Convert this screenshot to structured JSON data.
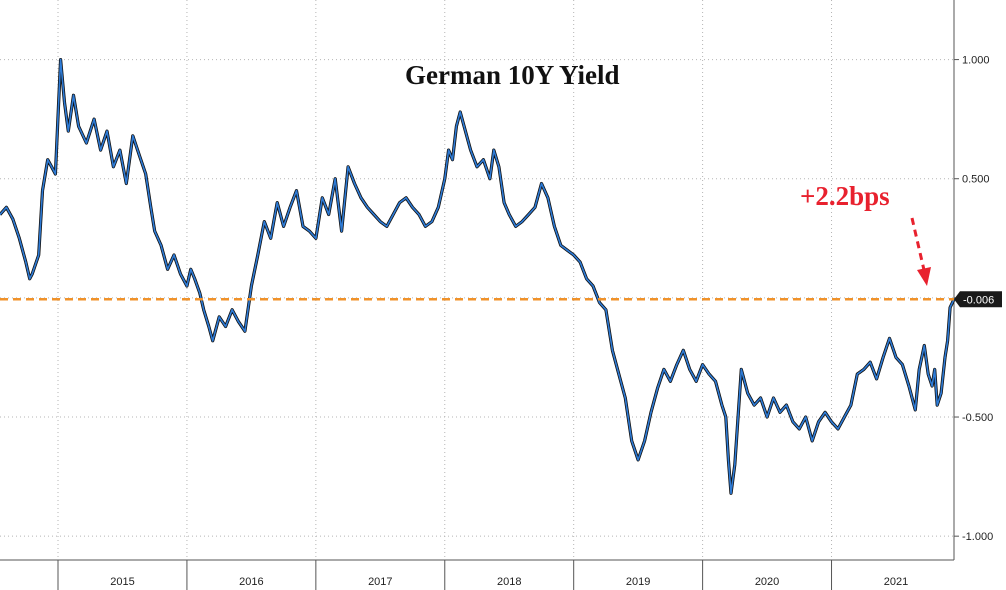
{
  "chart_data": {
    "type": "line",
    "title": "German 10Y Yield",
    "xlabel": "",
    "ylabel": "",
    "x_tick_labels": [
      "2015",
      "2016",
      "2017",
      "2018",
      "2019",
      "2020",
      "2021"
    ],
    "x_range": [
      2014.55,
      2021.95
    ],
    "y_ticks": [
      1.0,
      0.5,
      0.0,
      -0.5,
      -1.0
    ],
    "y_tick_labels": [
      "1.000",
      "0.500",
      "",
      "-0.500",
      "-1.000"
    ],
    "ylim": [
      -1.1,
      1.25
    ],
    "grid": true,
    "y_axis_side": "right",
    "series": [
      {
        "color": "#2e7bd6",
        "x": [
          2014.55,
          2014.6,
          2014.65,
          2014.7,
          2014.75,
          2014.78,
          2014.8,
          2014.85,
          2014.88,
          2014.92,
          2014.95,
          2014.98,
          2015.02,
          2015.05,
          2015.08,
          2015.12,
          2015.16,
          2015.22,
          2015.28,
          2015.33,
          2015.38,
          2015.43,
          2015.48,
          2015.53,
          2015.58,
          2015.63,
          2015.68,
          2015.72,
          2015.75,
          2015.8,
          2015.85,
          2015.9,
          2015.95,
          2016.0,
          2016.03,
          2016.06,
          2016.1,
          2016.13,
          2016.17,
          2016.2,
          2016.25,
          2016.3,
          2016.35,
          2016.4,
          2016.45,
          2016.5,
          2016.55,
          2016.6,
          2016.65,
          2016.7,
          2016.75,
          2016.8,
          2016.85,
          2016.9,
          2016.95,
          2017.0,
          2017.05,
          2017.1,
          2017.15,
          2017.2,
          2017.25,
          2017.3,
          2017.35,
          2017.4,
          2017.45,
          2017.5,
          2017.55,
          2017.6,
          2017.65,
          2017.7,
          2017.75,
          2017.8,
          2017.85,
          2017.9,
          2017.95,
          2018.0,
          2018.03,
          2018.06,
          2018.09,
          2018.12,
          2018.15,
          2018.2,
          2018.25,
          2018.3,
          2018.35,
          2018.38,
          2018.42,
          2018.46,
          2018.5,
          2018.55,
          2018.6,
          2018.65,
          2018.7,
          2018.75,
          2018.8,
          2018.85,
          2018.9,
          2018.95,
          2019.0,
          2019.05,
          2019.1,
          2019.15,
          2019.2,
          2019.25,
          2019.3,
          2019.35,
          2019.4,
          2019.45,
          2019.5,
          2019.55,
          2019.6,
          2019.65,
          2019.7,
          2019.75,
          2019.8,
          2019.85,
          2019.9,
          2019.95,
          2020.0,
          2020.05,
          2020.1,
          2020.15,
          2020.18,
          2020.2,
          2020.22,
          2020.25,
          2020.3,
          2020.35,
          2020.4,
          2020.45,
          2020.5,
          2020.55,
          2020.6,
          2020.65,
          2020.7,
          2020.75,
          2020.8,
          2020.85,
          2020.9,
          2020.95,
          2021.0,
          2021.05,
          2021.1,
          2021.15,
          2021.2,
          2021.25,
          2021.3,
          2021.35,
          2021.4,
          2021.45,
          2021.5,
          2021.55,
          2021.6,
          2021.65,
          2021.68,
          2021.72,
          2021.75,
          2021.78,
          2021.8,
          2021.82,
          2021.85,
          2021.88,
          2021.9,
          2021.92,
          2021.95
        ],
        "values": [
          0.35,
          0.38,
          0.33,
          0.25,
          0.15,
          0.08,
          0.1,
          0.18,
          0.45,
          0.58,
          0.55,
          0.52,
          1.0,
          0.82,
          0.7,
          0.85,
          0.72,
          0.65,
          0.75,
          0.62,
          0.7,
          0.55,
          0.62,
          0.48,
          0.68,
          0.6,
          0.52,
          0.38,
          0.28,
          0.22,
          0.12,
          0.18,
          0.1,
          0.05,
          0.12,
          0.08,
          0.02,
          -0.05,
          -0.12,
          -0.18,
          -0.08,
          -0.12,
          -0.05,
          -0.1,
          -0.14,
          0.05,
          0.18,
          0.32,
          0.25,
          0.4,
          0.3,
          0.38,
          0.45,
          0.3,
          0.28,
          0.25,
          0.42,
          0.35,
          0.5,
          0.28,
          0.55,
          0.48,
          0.42,
          0.38,
          0.35,
          0.32,
          0.3,
          0.35,
          0.4,
          0.42,
          0.38,
          0.35,
          0.3,
          0.32,
          0.38,
          0.5,
          0.62,
          0.58,
          0.72,
          0.78,
          0.72,
          0.62,
          0.55,
          0.58,
          0.5,
          0.62,
          0.55,
          0.4,
          0.35,
          0.3,
          0.32,
          0.35,
          0.38,
          0.48,
          0.42,
          0.3,
          0.22,
          0.2,
          0.18,
          0.15,
          0.08,
          0.05,
          -0.02,
          -0.05,
          -0.22,
          -0.32,
          -0.42,
          -0.6,
          -0.68,
          -0.6,
          -0.48,
          -0.38,
          -0.3,
          -0.35,
          -0.28,
          -0.22,
          -0.3,
          -0.35,
          -0.28,
          -0.32,
          -0.35,
          -0.45,
          -0.5,
          -0.68,
          -0.82,
          -0.7,
          -0.3,
          -0.4,
          -0.45,
          -0.42,
          -0.5,
          -0.42,
          -0.48,
          -0.45,
          -0.52,
          -0.55,
          -0.5,
          -0.6,
          -0.52,
          -0.48,
          -0.52,
          -0.55,
          -0.5,
          -0.45,
          -0.32,
          -0.3,
          -0.27,
          -0.34,
          -0.25,
          -0.17,
          -0.25,
          -0.28,
          -0.37,
          -0.47,
          -0.3,
          -0.2,
          -0.32,
          -0.37,
          -0.3,
          -0.45,
          -0.4,
          -0.25,
          -0.18,
          -0.04,
          -0.006
        ]
      }
    ],
    "reference_line": {
      "value": -0.006,
      "label": "-0.006",
      "color": "#f0922a"
    },
    "annotation": {
      "text": "+2.2bps",
      "color": "#e8212e"
    }
  }
}
